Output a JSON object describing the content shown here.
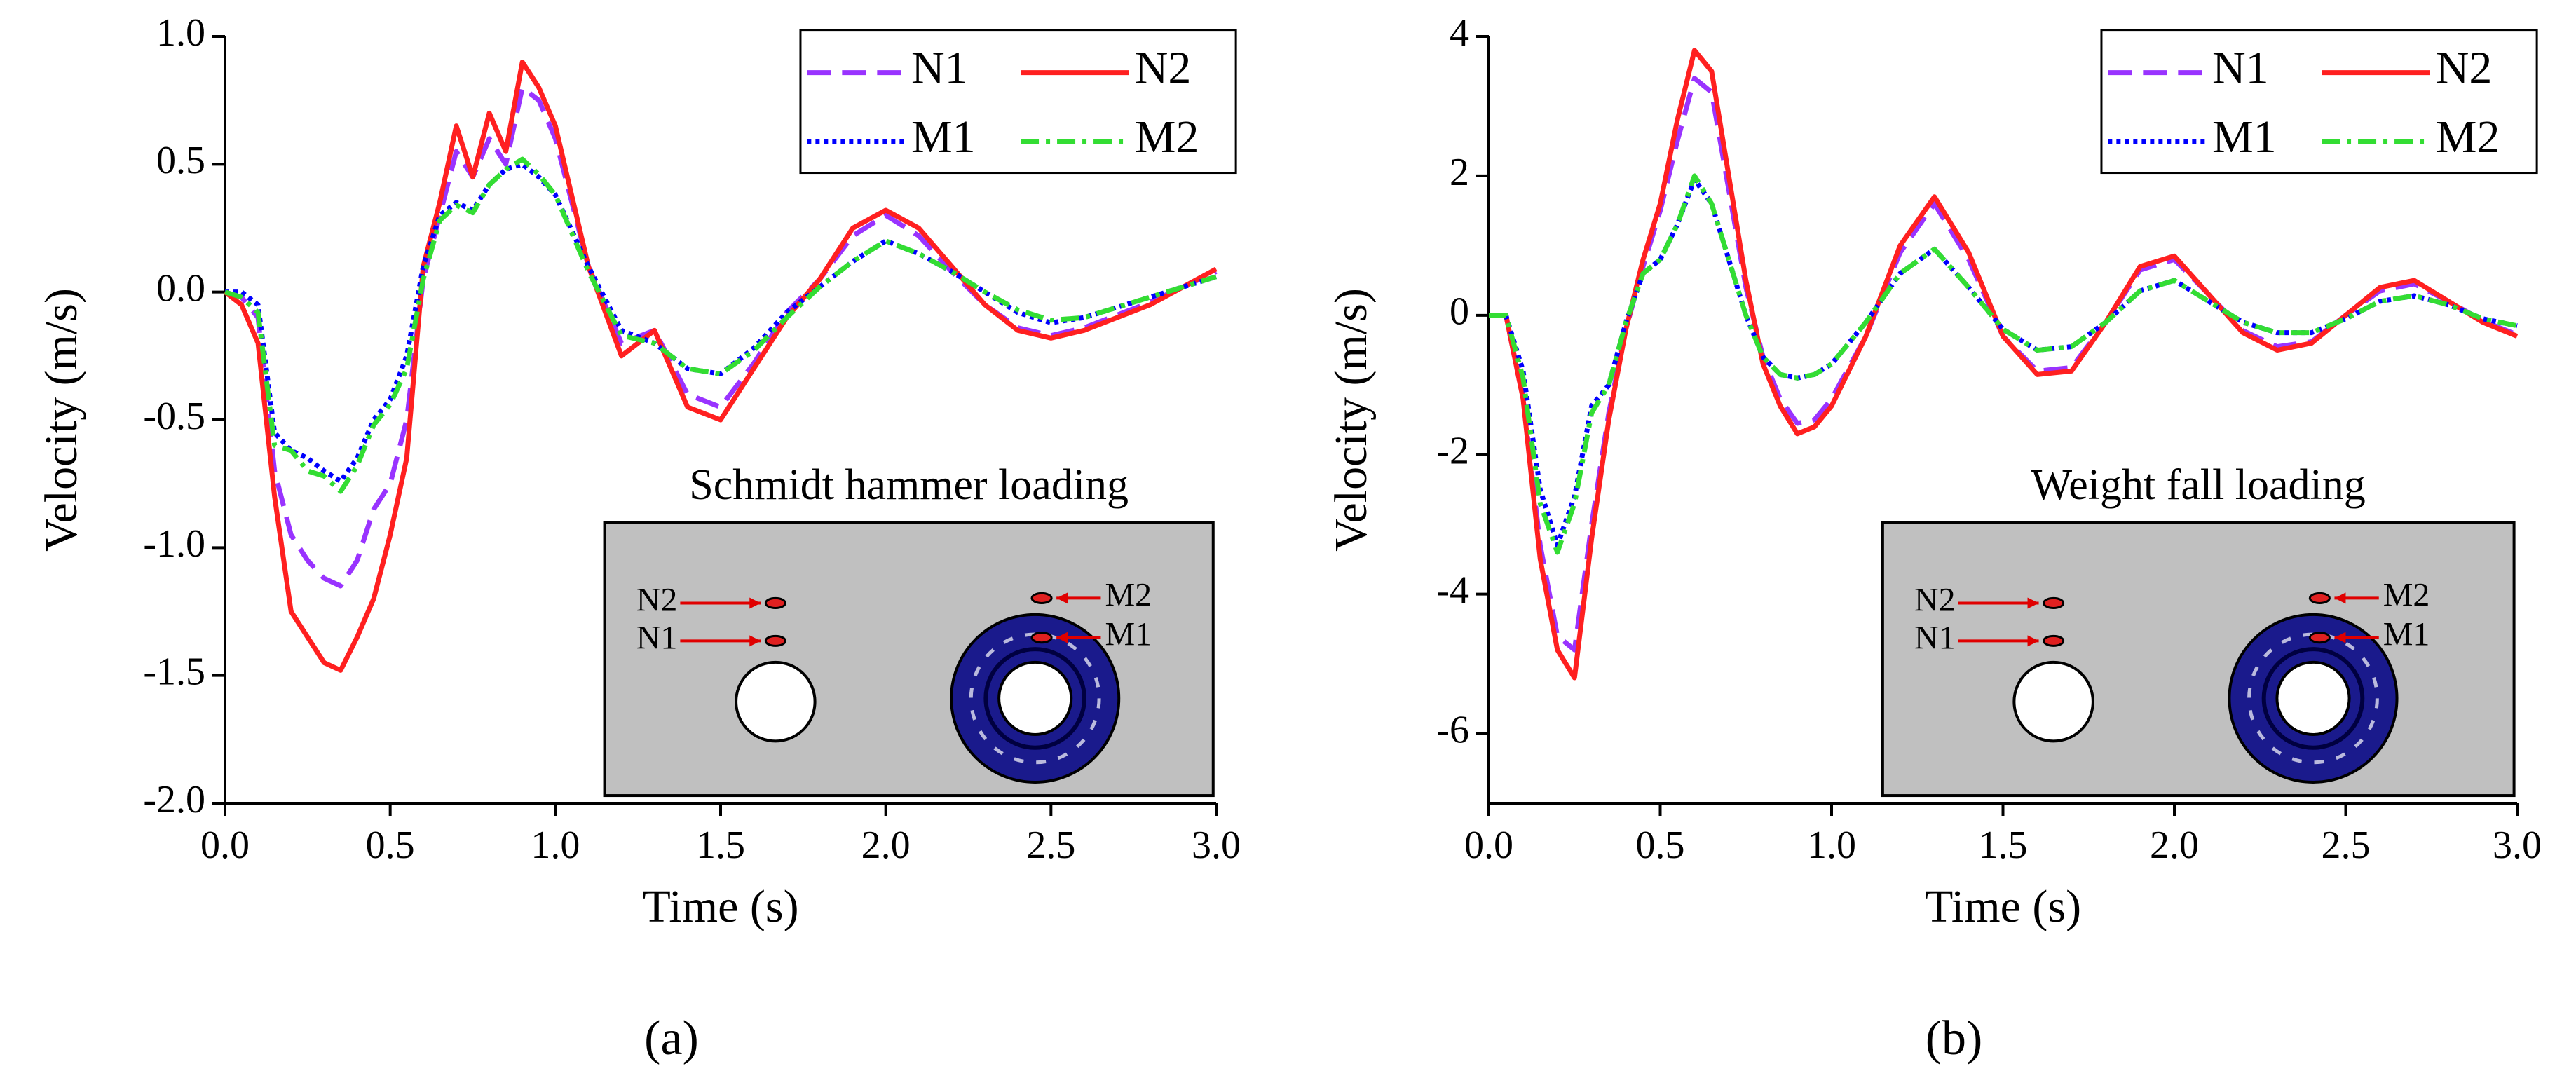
{
  "chart_data": [
    {
      "type": "line",
      "panel_label": "(a)",
      "annotation": "Schmidt hammer loading",
      "inset_labels": [
        "N2",
        "N1",
        "M2",
        "M1"
      ],
      "xlabel": "Time (s)",
      "ylabel": "Velocity (m/s)",
      "legend": "upper right",
      "x": [
        0,
        0.05,
        0.1,
        0.15,
        0.2,
        0.25,
        0.3,
        0.35,
        0.4,
        0.45,
        0.5,
        0.55,
        0.6,
        0.65,
        0.7,
        0.75,
        0.8,
        0.85,
        0.9,
        0.95,
        1.0,
        1.1,
        1.2,
        1.3,
        1.4,
        1.5,
        1.6,
        1.7,
        1.8,
        1.9,
        2.0,
        2.1,
        2.2,
        2.3,
        2.4,
        2.5,
        2.6,
        2.7,
        2.8,
        2.9,
        3.0
      ],
      "xlim": [
        0,
        3
      ],
      "xticks": [
        {
          "value": 0,
          "label": "0.0"
        },
        0.5,
        {
          "value": 1,
          "label": "1.0"
        },
        1.5,
        {
          "value": 2,
          "label": "2.0"
        },
        2.5,
        {
          "value": 3,
          "label": "3.0"
        }
      ],
      "ylim": [
        -2,
        1
      ],
      "yticks": [
        {
          "value": -2,
          "label": "-2.0"
        },
        -1.5,
        {
          "value": -1,
          "label": "-1.0"
        },
        -0.5,
        {
          "value": 0,
          "label": "0.0"
        },
        0.5,
        {
          "value": 1,
          "label": "1.0"
        }
      ],
      "series": [
        {
          "name": "N1",
          "color": "#9933ff",
          "linestyle": "dashed",
          "values": [
            0,
            -0.02,
            -0.1,
            -0.7,
            -0.95,
            -1.05,
            -1.12,
            -1.15,
            -1.05,
            -0.85,
            -0.75,
            -0.5,
            0.05,
            0.3,
            0.55,
            0.45,
            0.6,
            0.5,
            0.8,
            0.75,
            0.6,
            0.1,
            -0.2,
            -0.15,
            -0.4,
            -0.45,
            -0.28,
            -0.08,
            0.05,
            0.22,
            0.3,
            0.22,
            0.08,
            -0.05,
            -0.14,
            -0.17,
            -0.14,
            -0.09,
            -0.04,
            0.02,
            0.08
          ]
        },
        {
          "name": "N2",
          "color": "#ff2020",
          "linestyle": "solid",
          "values": [
            0,
            -0.05,
            -0.2,
            -0.8,
            -1.25,
            -1.35,
            -1.45,
            -1.48,
            -1.35,
            -1.2,
            -0.95,
            -0.65,
            0.1,
            0.35,
            0.65,
            0.45,
            0.7,
            0.55,
            0.9,
            0.8,
            0.65,
            0.1,
            -0.25,
            -0.15,
            -0.45,
            -0.5,
            -0.3,
            -0.1,
            0.05,
            0.25,
            0.32,
            0.25,
            0.1,
            -0.05,
            -0.15,
            -0.18,
            -0.15,
            -0.1,
            -0.05,
            0.02,
            0.09
          ]
        },
        {
          "name": "M1",
          "color": "#0000ff",
          "linestyle": "dotted",
          "values": [
            0,
            0,
            -0.05,
            -0.55,
            -0.62,
            -0.65,
            -0.7,
            -0.74,
            -0.65,
            -0.5,
            -0.42,
            -0.25,
            0.1,
            0.3,
            0.35,
            0.32,
            0.42,
            0.48,
            0.5,
            0.45,
            0.38,
            0.1,
            -0.15,
            -0.2,
            -0.3,
            -0.32,
            -0.22,
            -0.08,
            0.02,
            0.12,
            0.2,
            0.15,
            0.08,
            0,
            -0.08,
            -0.12,
            -0.1,
            -0.06,
            -0.02,
            0.02,
            0.06
          ]
        },
        {
          "name": "M2",
          "color": "#33dd33",
          "linestyle": "dashdot",
          "values": [
            0,
            -0.02,
            -0.08,
            -0.6,
            -0.62,
            -0.7,
            -0.72,
            -0.78,
            -0.68,
            -0.52,
            -0.44,
            -0.3,
            0.05,
            0.28,
            0.34,
            0.31,
            0.42,
            0.48,
            0.52,
            0.46,
            0.38,
            0.08,
            -0.17,
            -0.2,
            -0.3,
            -0.32,
            -0.23,
            -0.1,
            0.02,
            0.12,
            0.2,
            0.15,
            0.08,
            0,
            -0.07,
            -0.11,
            -0.1,
            -0.06,
            -0.02,
            0.02,
            0.06
          ]
        }
      ]
    },
    {
      "type": "line",
      "panel_label": "(b)",
      "annotation": "Weight fall loading",
      "inset_labels": [
        "N2",
        "N1",
        "M2",
        "M1"
      ],
      "xlabel": "Time (s)",
      "ylabel": "Velocity (m/s)",
      "legend": "upper right",
      "x": [
        0,
        0.05,
        0.1,
        0.15,
        0.2,
        0.25,
        0.3,
        0.35,
        0.4,
        0.45,
        0.5,
        0.55,
        0.6,
        0.65,
        0.7,
        0.75,
        0.8,
        0.85,
        0.9,
        0.95,
        1.0,
        1.1,
        1.2,
        1.3,
        1.4,
        1.5,
        1.6,
        1.7,
        1.8,
        1.9,
        2.0,
        2.1,
        2.2,
        2.3,
        2.4,
        2.5,
        2.6,
        2.7,
        2.8,
        2.9,
        3.0
      ],
      "xlim": [
        0,
        3
      ],
      "xticks": [
        {
          "value": 0,
          "label": "0.0"
        },
        0.5,
        {
          "value": 1,
          "label": "1.0"
        },
        1.5,
        {
          "value": 2,
          "label": "2.0"
        },
        2.5,
        {
          "value": 3,
          "label": "3.0"
        }
      ],
      "ylim": [
        -7,
        4
      ],
      "yticks": [
        -6,
        -4,
        -2,
        0,
        2,
        4
      ],
      "series": [
        {
          "name": "N1",
          "color": "#9933ff",
          "linestyle": "dashed",
          "values": [
            0,
            0,
            -1.2,
            -3.3,
            -4.6,
            -4.8,
            -3.0,
            -1.4,
            -0.2,
            0.7,
            1.5,
            2.5,
            3.4,
            3.2,
            1.8,
            0.4,
            -0.6,
            -1.2,
            -1.55,
            -1.5,
            -1.2,
            -0.3,
            0.9,
            1.6,
            0.8,
            -0.3,
            -0.8,
            -0.75,
            -0.1,
            0.65,
            0.8,
            0.3,
            -0.22,
            -0.45,
            -0.38,
            0,
            0.35,
            0.45,
            0.2,
            -0.08,
            -0.28
          ]
        },
        {
          "name": "N2",
          "color": "#ff2020",
          "linestyle": "solid",
          "values": [
            0,
            0,
            -1.2,
            -3.5,
            -4.8,
            -5.2,
            -3.2,
            -1.5,
            -0.2,
            0.8,
            1.6,
            2.8,
            3.8,
            3.5,
            2.0,
            0.5,
            -0.7,
            -1.3,
            -1.7,
            -1.6,
            -1.3,
            -0.3,
            1.0,
            1.7,
            0.9,
            -0.3,
            -0.85,
            -0.8,
            -0.1,
            0.7,
            0.85,
            0.3,
            -0.25,
            -0.5,
            -0.4,
            0,
            0.4,
            0.5,
            0.2,
            -0.1,
            -0.3
          ]
        },
        {
          "name": "M1",
          "color": "#0000ff",
          "linestyle": "dotted",
          "values": [
            0,
            0,
            -0.8,
            -2.5,
            -3.3,
            -2.6,
            -1.3,
            -1.0,
            -0.1,
            0.6,
            0.8,
            1.3,
            1.95,
            1.6,
            0.8,
            0,
            -0.6,
            -0.85,
            -0.9,
            -0.85,
            -0.7,
            -0.1,
            0.6,
            0.95,
            0.4,
            -0.2,
            -0.5,
            -0.45,
            -0.1,
            0.35,
            0.5,
            0.2,
            -0.1,
            -0.25,
            -0.25,
            -0.05,
            0.2,
            0.28,
            0.15,
            -0.05,
            -0.15
          ]
        },
        {
          "name": "M2",
          "color": "#33dd33",
          "linestyle": "dashdot",
          "values": [
            0,
            0,
            -0.9,
            -2.7,
            -3.4,
            -2.7,
            -1.4,
            -1.0,
            -0.1,
            0.6,
            0.8,
            1.3,
            2.0,
            1.6,
            0.8,
            0,
            -0.6,
            -0.85,
            -0.9,
            -0.85,
            -0.7,
            -0.1,
            0.6,
            0.95,
            0.4,
            -0.2,
            -0.5,
            -0.45,
            -0.1,
            0.35,
            0.5,
            0.2,
            -0.1,
            -0.25,
            -0.25,
            -0.05,
            0.2,
            0.28,
            0.15,
            -0.05,
            -0.15
          ]
        }
      ]
    }
  ]
}
